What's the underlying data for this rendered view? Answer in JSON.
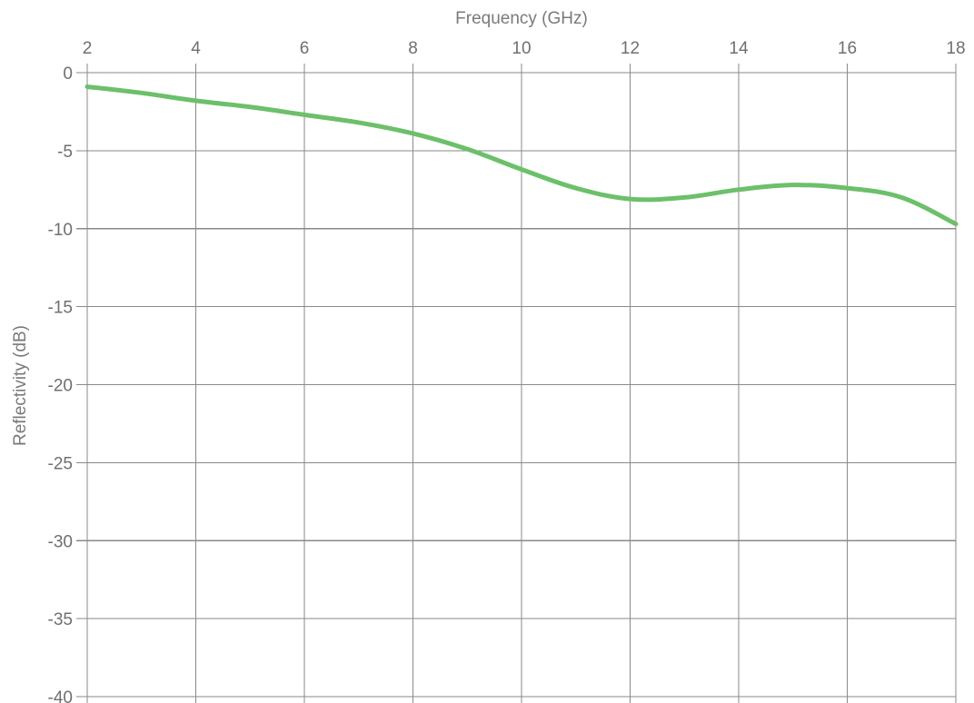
{
  "chart_data": {
    "type": "line",
    "title": "",
    "xlabel": "Frequency (GHz)",
    "ylabel": "Reflectivity (dB)",
    "x_axis_position": "top",
    "xlim": [
      2,
      18
    ],
    "ylim": [
      -40,
      0
    ],
    "x_ticks": [
      2,
      4,
      6,
      8,
      10,
      12,
      14,
      16,
      18
    ],
    "y_ticks": [
      0,
      -5,
      -10,
      -15,
      -20,
      -25,
      -30,
      -35,
      -40
    ],
    "grid": true,
    "legend": "none",
    "series": [
      {
        "color": "#6cc06a",
        "x": [
          2,
          3,
          4,
          5,
          6,
          7,
          8,
          9,
          10,
          11,
          12,
          13,
          14,
          15,
          16,
          17,
          18
        ],
        "y": [
          -0.9,
          -1.3,
          -1.8,
          -2.2,
          -2.7,
          -3.2,
          -3.9,
          -4.9,
          -6.2,
          -7.4,
          -8.1,
          -8.0,
          -7.5,
          -7.2,
          -7.4,
          -8.0,
          -9.7
        ]
      }
    ]
  }
}
